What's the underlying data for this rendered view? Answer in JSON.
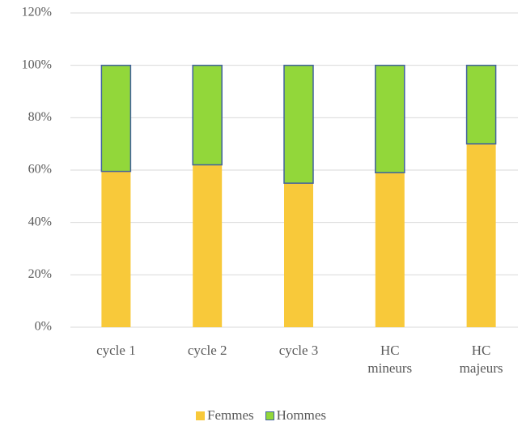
{
  "chart_data": {
    "type": "stacked_bar",
    "categories": [
      "cycle 1",
      "cycle 2",
      "cycle 3",
      "HC mineurs",
      "HC majeurs"
    ],
    "series": [
      {
        "name": "Femmes",
        "color": "#f8c93a",
        "values": [
          59.5,
          62,
          55,
          59,
          70
        ]
      },
      {
        "name": "Hommes",
        "color": "#92d73a",
        "values": [
          40.5,
          38,
          45,
          41,
          30
        ]
      }
    ],
    "ylim": [
      0,
      120
    ],
    "yticks": [
      {
        "value": 0,
        "label": "0%"
      },
      {
        "value": 20,
        "label": "20%"
      },
      {
        "value": 40,
        "label": "40%"
      },
      {
        "value": 60,
        "label": "60%"
      },
      {
        "value": 80,
        "label": "80%"
      },
      {
        "value": 100,
        "label": "100%"
      },
      {
        "value": 120,
        "label": "120%"
      }
    ],
    "grid": true,
    "legend": "bottom"
  }
}
